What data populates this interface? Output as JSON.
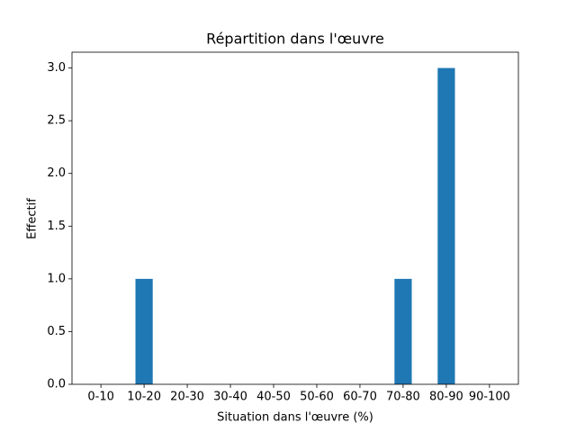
{
  "chart_data": {
    "type": "bar",
    "title": "Répartition dans l'œuvre",
    "x_label": "Situation dans l'œuvre (%)",
    "y_label": "Effectif",
    "categories": [
      "0-10",
      "10-20",
      "20-30",
      "30-40",
      "40-50",
      "50-60",
      "60-70",
      "70-80",
      "80-90",
      "90-100"
    ],
    "values": [
      0,
      1,
      0,
      0,
      0,
      0,
      0,
      1,
      3,
      0
    ],
    "color": "#1f77b4",
    "ylim": [
      0,
      3.15
    ],
    "yticks": [
      {
        "value": 0,
        "label": "0.0"
      },
      {
        "value": 0.5,
        "label": "0.5"
      },
      {
        "value": 1,
        "label": "1.0"
      },
      {
        "value": 1.5,
        "label": "1.5"
      },
      {
        "value": 2,
        "label": "2.0"
      },
      {
        "value": 2.5,
        "label": "2.5"
      },
      {
        "value": 3,
        "label": "3.0"
      }
    ]
  }
}
